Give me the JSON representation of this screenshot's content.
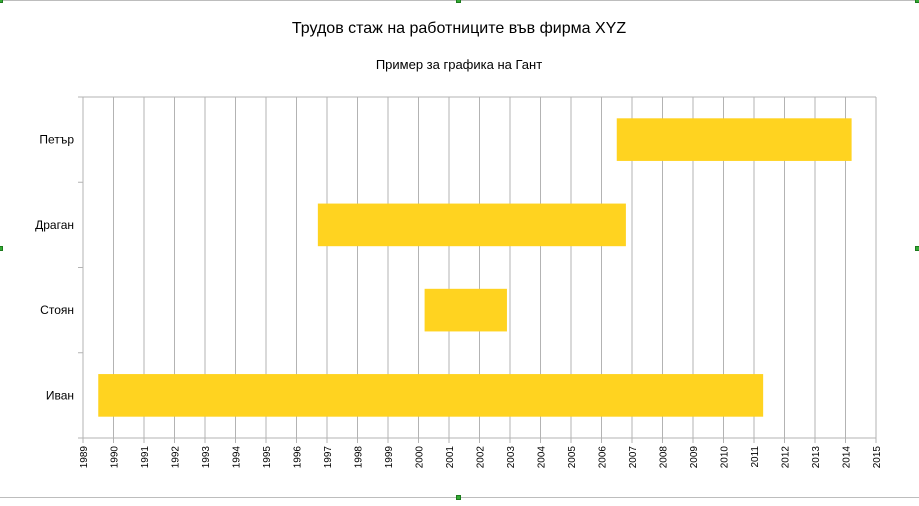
{
  "colors": {
    "bar": "#FFD320",
    "grid": "#B3B3B3",
    "handle": "#33AA33"
  },
  "chart_data": {
    "type": "bar",
    "orientation": "horizontal-gantt",
    "title": "Трудов стаж на работниците във фирма XYZ",
    "subtitle": "Пример за графика на Гант",
    "xlabel": "",
    "ylabel": "",
    "xlim": [
      1989,
      2015
    ],
    "x_ticks": [
      "1989",
      "1990",
      "1991",
      "1992",
      "1993",
      "1994",
      "1995",
      "1996",
      "1997",
      "1998",
      "1999",
      "2000",
      "2001",
      "2002",
      "2003",
      "2004",
      "2005",
      "2006",
      "2007",
      "2008",
      "2009",
      "2010",
      "2011",
      "2012",
      "2013",
      "2014",
      "2015"
    ],
    "grid": true,
    "legend": "none",
    "categories": [
      "Петър",
      "Драган",
      "Стоян",
      "Иван"
    ],
    "start": [
      2006.5,
      1996.7,
      2000.2,
      1989.5
    ],
    "end": [
      2014.2,
      2006.8,
      2002.9,
      2011.3
    ]
  }
}
